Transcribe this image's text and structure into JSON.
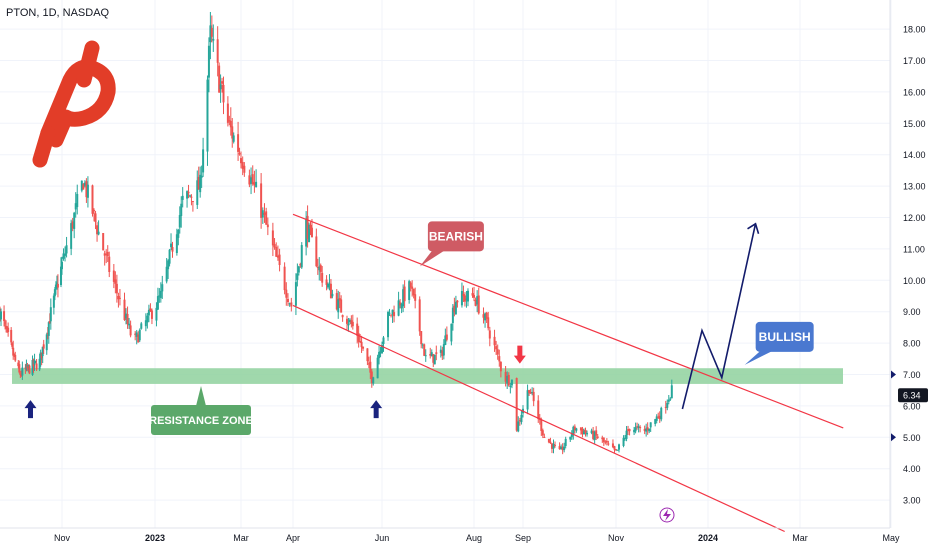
{
  "header": {
    "ticker_label": "PTON, 1D, NASDAQ"
  },
  "colors": {
    "up": "#26a69a",
    "down": "#ef5350",
    "channel": "#f23645",
    "zone": "#8fd19e",
    "zone_label_bg": "#5ba86a",
    "bearish_bg": "#cf5b64",
    "bullish_bg": "#4a78d0",
    "projection": "#131c6b",
    "signal_up": "#1a237e",
    "signal_down": "#f23645",
    "price_badge": "#131722",
    "logo": "#e23d28"
  },
  "annotations": {
    "bearish_label": "BEARISH",
    "bullish_label": "BULLISH",
    "zone_label": "RESISTANCE ZONE"
  },
  "price_axis": {
    "current_price": "6.34"
  },
  "icons": {
    "logo": "peloton-logo",
    "event": "lightning-icon",
    "up_arrow": "up-arrow-icon",
    "down_arrow": "down-arrow-icon"
  },
  "chart_data": {
    "type": "candlestick",
    "title": "PTON, 1D, NASDAQ",
    "ylim": [
      2.0,
      18.5
    ],
    "y_ticks": [
      "3.00",
      "4.00",
      "5.00",
      "6.00",
      "7.00",
      "8.00",
      "9.00",
      "10.00",
      "11.00",
      "12.00",
      "13.00",
      "14.00",
      "15.00",
      "16.00",
      "17.00",
      "18.00"
    ],
    "x_ticks": [
      "Nov",
      "2023",
      "Mar",
      "Apr",
      "Jun",
      "Aug",
      "Sep",
      "Nov",
      "2024",
      "Mar",
      "May"
    ],
    "price_path": [
      [
        "2022-09-01",
        9.0
      ],
      [
        "2022-09-20",
        7.0
      ],
      [
        "2022-10-10",
        7.4
      ],
      [
        "2022-11-01",
        10.5
      ],
      [
        "2022-11-15",
        13.2
      ],
      [
        "2022-12-01",
        10.5
      ],
      [
        "2022-12-18",
        8.0
      ],
      [
        "2023-01-05",
        9.5
      ],
      [
        "2023-01-20",
        12.5
      ],
      [
        "2023-02-01",
        13.0
      ],
      [
        "2023-02-08",
        17.8
      ],
      [
        "2023-02-20",
        15.0
      ],
      [
        "2023-03-01",
        14.0
      ],
      [
        "2023-03-10",
        12.8
      ],
      [
        "2023-03-20",
        11.0
      ],
      [
        "2023-03-31",
        9.2
      ],
      [
        "2023-04-10",
        11.8
      ],
      [
        "2023-04-20",
        10.2
      ],
      [
        "2023-05-01",
        9.3
      ],
      [
        "2023-05-15",
        8.3
      ],
      [
        "2023-05-25",
        6.9
      ],
      [
        "2023-06-05",
        8.8
      ],
      [
        "2023-06-20",
        9.8
      ],
      [
        "2023-06-30",
        7.5
      ],
      [
        "2023-07-10",
        7.6
      ],
      [
        "2023-07-20",
        9.4
      ],
      [
        "2023-08-01",
        9.5
      ],
      [
        "2023-08-10",
        8.5
      ],
      [
        "2023-08-20",
        6.9
      ],
      [
        "2023-08-25",
        6.8
      ],
      [
        "2023-08-28",
        5.3
      ],
      [
        "2023-09-05",
        6.6
      ],
      [
        "2023-09-15",
        5.0
      ],
      [
        "2023-09-25",
        4.5
      ],
      [
        "2023-10-05",
        5.3
      ],
      [
        "2023-10-20",
        5.0
      ],
      [
        "2023-11-01",
        4.5
      ],
      [
        "2023-11-10",
        5.3
      ],
      [
        "2023-11-20",
        5.2
      ],
      [
        "2023-12-01",
        5.8
      ],
      [
        "2023-12-08",
        6.5
      ]
    ],
    "resistance_zone": {
      "low": 6.7,
      "high": 7.2,
      "from": "2022-09-01",
      "to": "2024-03-31",
      "label": "RESISTANCE ZONE"
    },
    "channel_upper": [
      [
        "2023-04-01",
        12.1
      ],
      [
        "2024-03-30",
        5.3
      ]
    ],
    "channel_lower": [
      [
        "2023-04-01",
        9.2
      ],
      [
        "2024-02-20",
        2.0
      ]
    ],
    "projection_path": [
      [
        "2023-12-15",
        5.9
      ],
      [
        "2023-12-28",
        8.4
      ],
      [
        "2024-01-10",
        6.9
      ],
      [
        "2024-02-01",
        11.8
      ]
    ],
    "signals": [
      {
        "date": "2022-10-01",
        "price": 5.8,
        "direction": "up"
      },
      {
        "date": "2023-05-28",
        "price": 5.8,
        "direction": "up"
      },
      {
        "date": "2023-08-30",
        "price": 7.6,
        "direction": "down"
      }
    ],
    "current_price": 6.34,
    "badges": [
      {
        "text": "BEARISH",
        "date": "2023-07-20",
        "price": 11.4
      },
      {
        "text": "BULLISH",
        "date": "2024-02-20",
        "price": 8.2
      }
    ]
  }
}
